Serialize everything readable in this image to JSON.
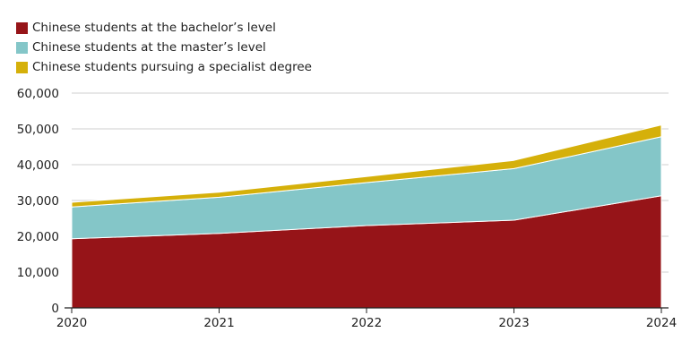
{
  "chart_data": {
    "type": "area",
    "stacked": true,
    "x": [
      "2020",
      "2021",
      "2022",
      "2023",
      "2024"
    ],
    "series": [
      {
        "name": "Chinese students at the bachelor’s level",
        "color": "#961418",
        "values": [
          19300,
          20800,
          23000,
          24500,
          31300
        ]
      },
      {
        "name": "Chinese students at the master’s level",
        "color": "#84c6c8",
        "values": [
          8900,
          10100,
          12000,
          14400,
          16500
        ]
      },
      {
        "name": "Chinese students pursuing a specialist degree",
        "color": "#d5b00a",
        "values": [
          1300,
          1400,
          1700,
          2300,
          3300
        ]
      }
    ],
    "ylim": [
      0,
      60000
    ],
    "yticks": [
      "0",
      "10,000",
      "20,000",
      "30,000",
      "40,000",
      "50,000",
      "60,000"
    ],
    "ytick_values": [
      0,
      10000,
      20000,
      30000,
      40000,
      50000,
      60000
    ],
    "grid": true,
    "legend_position": "top-left"
  }
}
